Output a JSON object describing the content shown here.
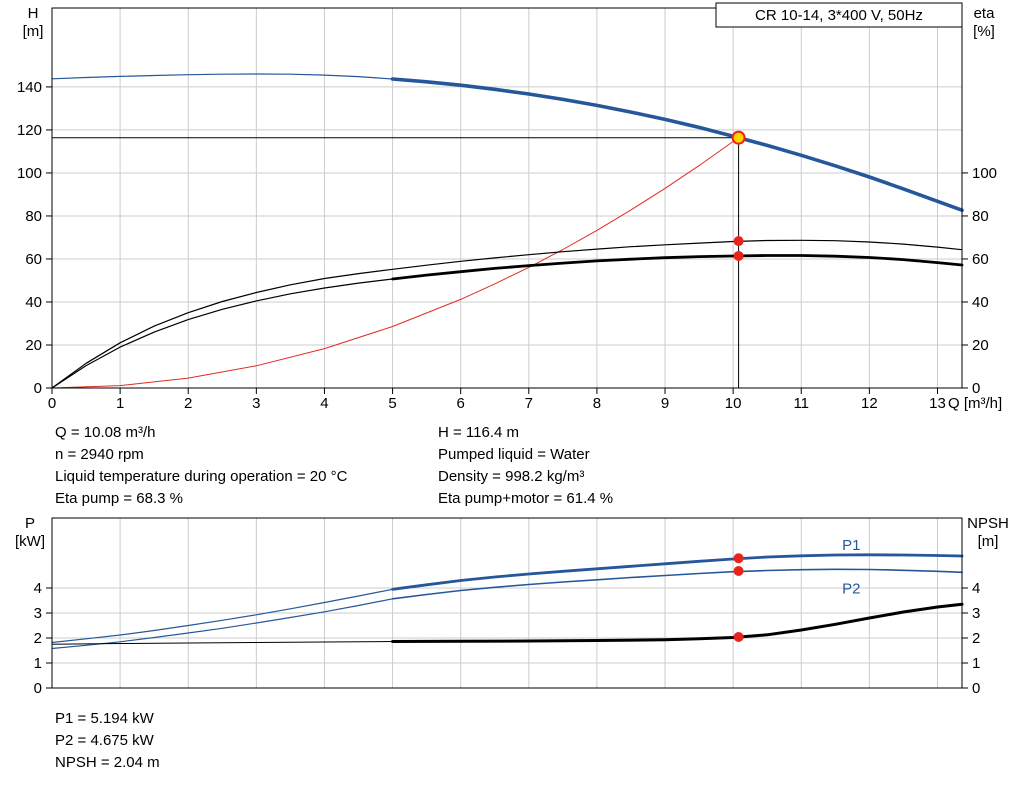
{
  "window": {
    "title_box": "CR 10-14, 3*400 V, 50Hz"
  },
  "top_info": {
    "left": [
      "Q = 10.08 m³/h",
      "n = 2940 rpm",
      "Liquid temperature during operation = 20 °C",
      "Eta pump = 68.3 %"
    ],
    "right": [
      "H = 116.4 m",
      "Pumped liquid = Water",
      "Density = 998.2 kg/m³",
      "Eta pump+motor = 61.4 %"
    ]
  },
  "bottom_info": [
    "P1 = 5.194 kW",
    "P2 = 4.675 kW",
    "NPSH = 2.04 m"
  ],
  "colors": {
    "curve_blue": "#27579b",
    "curve_black": "#000000",
    "curve_red": "#e02b20",
    "marker_red": "#e8231a",
    "marker_yellow": "#ffd500",
    "grid": "#cccccc"
  },
  "chart_data": [
    {
      "type": "line",
      "title": "CR 10-14, 3*400 V, 50Hz",
      "x_axis": {
        "label": "Q [m³/h]",
        "range": [
          0,
          13.36
        ],
        "ticks": [
          0,
          1,
          2,
          3,
          4,
          5,
          6,
          7,
          8,
          9,
          10,
          11,
          12,
          13
        ]
      },
      "left_axis": {
        "label": "H",
        "unit": "[m]",
        "range": [
          0,
          176.7
        ],
        "ticks": [
          0,
          20,
          40,
          60,
          80,
          100,
          120,
          140
        ]
      },
      "right_axis": {
        "label": "eta",
        "unit": "[%]",
        "range": [
          0,
          176.7
        ],
        "ticks": [
          0,
          20,
          40,
          60,
          80,
          100
        ]
      },
      "operating_point": {
        "q": 10.08,
        "h": 116.4,
        "eta_pump": 68.3,
        "eta_pump_motor": 61.4
      },
      "series": [
        {
          "name": "system-curve",
          "color": "#e02b20",
          "width": 1,
          "points": [
            [
              0,
              0
            ],
            [
              1,
              1.1
            ],
            [
              2,
              4.6
            ],
            [
              3,
              10.3
            ],
            [
              4,
              18.3
            ],
            [
              5,
              28.6
            ],
            [
              6,
              41.2
            ],
            [
              6.5,
              48.4
            ],
            [
              7,
              56.1
            ],
            [
              7.5,
              64.4
            ],
            [
              8,
              73.3
            ],
            [
              8.5,
              82.8
            ],
            [
              9,
              92.8
            ],
            [
              9.5,
              103.4
            ],
            [
              10,
              114.6
            ],
            [
              10.08,
              116.4
            ]
          ]
        },
        {
          "name": "duty-line-horizontal",
          "color": "#000000",
          "width": 1,
          "points": [
            [
              0,
              116.4
            ],
            [
              10.08,
              116.4
            ]
          ]
        },
        {
          "name": "duty-line-vertical",
          "color": "#000000",
          "width": 1,
          "points": [
            [
              10.08,
              0
            ],
            [
              10.08,
              116.4
            ]
          ]
        },
        {
          "name": "eta-pump",
          "color": "#000000",
          "width": 1.2,
          "points": [
            [
              0,
              0
            ],
            [
              0.5,
              11.5
            ],
            [
              1,
              21
            ],
            [
              1.5,
              28.8
            ],
            [
              2,
              35
            ],
            [
              2.5,
              40.2
            ],
            [
              3,
              44.4
            ],
            [
              3.5,
              48
            ],
            [
              4,
              50.9
            ],
            [
              4.5,
              53.2
            ],
            [
              5,
              55.2
            ],
            [
              5.5,
              57.1
            ],
            [
              6,
              58.9
            ],
            [
              6.5,
              60.5
            ],
            [
              7,
              62
            ],
            [
              7.5,
              63.4
            ],
            [
              8,
              64.6
            ],
            [
              8.5,
              65.7
            ],
            [
              9,
              66.6
            ],
            [
              9.5,
              67.4
            ],
            [
              10,
              68.1
            ],
            [
              10.5,
              68.6
            ],
            [
              11,
              68.7
            ],
            [
              11.5,
              68.5
            ],
            [
              12,
              67.9
            ],
            [
              12.5,
              66.9
            ],
            [
              13,
              65.5
            ],
            [
              13.36,
              64.3
            ]
          ]
        },
        {
          "name": "eta-pump-motor-thin",
          "color": "#000000",
          "width": 1.2,
          "points": [
            [
              0,
              0
            ],
            [
              0.5,
              10.4
            ],
            [
              1,
              19
            ],
            [
              1.5,
              26
            ],
            [
              2,
              31.8
            ],
            [
              2.5,
              36.6
            ],
            [
              3,
              40.5
            ],
            [
              3.5,
              43.8
            ],
            [
              4,
              46.5
            ],
            [
              4.5,
              48.8
            ],
            [
              5,
              50.7
            ]
          ]
        },
        {
          "name": "eta-pump-motor",
          "color": "#000000",
          "width": 2.8,
          "points": [
            [
              5,
              50.7
            ],
            [
              5.5,
              52.5
            ],
            [
              6,
              54.1
            ],
            [
              6.5,
              55.6
            ],
            [
              7,
              56.9
            ],
            [
              7.5,
              58.1
            ],
            [
              8,
              59.1
            ],
            [
              8.5,
              59.9
            ],
            [
              9,
              60.6
            ],
            [
              9.5,
              61.1
            ],
            [
              10,
              61.4
            ],
            [
              10.5,
              61.6
            ],
            [
              11,
              61.6
            ],
            [
              11.5,
              61.3
            ],
            [
              12,
              60.7
            ],
            [
              12.5,
              59.7
            ],
            [
              13,
              58.3
            ],
            [
              13.36,
              57.2
            ]
          ]
        },
        {
          "name": "head-curve-thin",
          "color": "#27579b",
          "width": 1.2,
          "points": [
            [
              0,
              143.8
            ],
            [
              0.5,
              144.4
            ],
            [
              1,
              144.9
            ],
            [
              1.5,
              145.3
            ],
            [
              2,
              145.7
            ],
            [
              2.5,
              145.9
            ],
            [
              3,
              146
            ],
            [
              3.5,
              145.9
            ],
            [
              4,
              145.5
            ],
            [
              4.5,
              144.8
            ],
            [
              5,
              143.7
            ]
          ]
        },
        {
          "name": "head-curve",
          "color": "#27579b",
          "width": 3.6,
          "points": [
            [
              5,
              143.7
            ],
            [
              5.5,
              142.4
            ],
            [
              6,
              140.8
            ],
            [
              6.5,
              138.9
            ],
            [
              7,
              136.7
            ],
            [
              7.5,
              134.2
            ],
            [
              8,
              131.4
            ],
            [
              8.5,
              128.3
            ],
            [
              9,
              124.9
            ],
            [
              9.5,
              121.2
            ],
            [
              10,
              117.1
            ],
            [
              10.5,
              112.8
            ],
            [
              11,
              108.2
            ],
            [
              11.5,
              103.3
            ],
            [
              12,
              98.1
            ],
            [
              12.5,
              92.6
            ],
            [
              13,
              86.8
            ],
            [
              13.36,
              82.7
            ]
          ]
        }
      ],
      "markers": [
        {
          "name": "eta-pump-point",
          "x": 10.08,
          "y": 68.3,
          "r": 5,
          "fill": "#e8231a"
        },
        {
          "name": "eta-pump-motor-point",
          "x": 10.08,
          "y": 61.4,
          "r": 5,
          "fill": "#e8231a"
        },
        {
          "name": "operating-point",
          "x": 10.08,
          "y": 116.4,
          "r": 6,
          "fill": "#ffd500",
          "stroke": "#e8231a",
          "stroke_width": 2
        }
      ],
      "labels": []
    },
    {
      "type": "line",
      "x_axis": {
        "label": "",
        "range": [
          0,
          13.36
        ],
        "ticks": [
          0,
          1,
          2,
          3,
          4,
          5,
          6,
          7,
          8,
          9,
          10,
          11,
          12,
          13
        ]
      },
      "left_axis": {
        "label": "P",
        "unit": "[kW]",
        "range": [
          0,
          6.8
        ],
        "ticks": [
          0,
          1,
          2,
          3,
          4
        ]
      },
      "right_axis": {
        "label": "NPSH",
        "unit": "[m]",
        "range": [
          0,
          6.8
        ],
        "ticks": [
          0,
          1,
          2,
          3,
          4
        ]
      },
      "operating_point": {
        "q": 10.08,
        "p1_kw": 5.194,
        "p2_kw": 4.675,
        "npsh_m": 2.04
      },
      "series": [
        {
          "name": "p1-thin",
          "color": "#27579b",
          "width": 1.2,
          "points": [
            [
              0,
              1.82
            ],
            [
              0.5,
              1.97
            ],
            [
              1,
              2.12
            ],
            [
              1.5,
              2.3
            ],
            [
              2,
              2.5
            ],
            [
              2.5,
              2.71
            ],
            [
              3,
              2.93
            ],
            [
              3.5,
              3.17
            ],
            [
              4,
              3.42
            ],
            [
              4.5,
              3.68
            ],
            [
              5,
              3.95
            ]
          ]
        },
        {
          "name": "p1",
          "color": "#27579b",
          "width": 2.8,
          "points": [
            [
              5,
              3.95
            ],
            [
              5.5,
              4.13
            ],
            [
              6,
              4.3
            ],
            [
              6.5,
              4.44
            ],
            [
              7,
              4.56
            ],
            [
              7.5,
              4.67
            ],
            [
              8,
              4.77
            ],
            [
              8.5,
              4.87
            ],
            [
              9,
              4.97
            ],
            [
              9.5,
              5.07
            ],
            [
              10,
              5.16
            ],
            [
              10.5,
              5.24
            ],
            [
              11,
              5.29
            ],
            [
              11.5,
              5.32
            ],
            [
              12,
              5.33
            ],
            [
              12.5,
              5.32
            ],
            [
              13,
              5.3
            ],
            [
              13.36,
              5.28
            ]
          ]
        },
        {
          "name": "p2-thin",
          "color": "#27579b",
          "width": 1.2,
          "points": [
            [
              0,
              1.58
            ],
            [
              0.5,
              1.71
            ],
            [
              1,
              1.85
            ],
            [
              1.5,
              2.02
            ],
            [
              2,
              2.2
            ],
            [
              2.5,
              2.39
            ],
            [
              3,
              2.6
            ],
            [
              3.5,
              2.82
            ],
            [
              4,
              3.05
            ],
            [
              4.5,
              3.3
            ],
            [
              5,
              3.57
            ]
          ]
        },
        {
          "name": "p2",
          "color": "#27579b",
          "width": 1.6,
          "points": [
            [
              5,
              3.57
            ],
            [
              5.5,
              3.74
            ],
            [
              6,
              3.9
            ],
            [
              6.5,
              4.03
            ],
            [
              7,
              4.14
            ],
            [
              7.5,
              4.24
            ],
            [
              8,
              4.33
            ],
            [
              8.5,
              4.42
            ],
            [
              9,
              4.5
            ],
            [
              9.5,
              4.58
            ],
            [
              10,
              4.65
            ],
            [
              10.5,
              4.7
            ],
            [
              11,
              4.73
            ],
            [
              11.5,
              4.75
            ],
            [
              12,
              4.74
            ],
            [
              12.5,
              4.71
            ],
            [
              13,
              4.67
            ],
            [
              13.36,
              4.63
            ]
          ]
        },
        {
          "name": "npsh-thin",
          "color": "#000000",
          "width": 1,
          "points": [
            [
              0,
              1.75
            ],
            [
              1,
              1.78
            ],
            [
              2,
              1.8
            ],
            [
              3,
              1.82
            ],
            [
              4,
              1.84
            ],
            [
              5,
              1.86
            ]
          ]
        },
        {
          "name": "npsh",
          "color": "#000000",
          "width": 3,
          "points": [
            [
              5,
              1.86
            ],
            [
              6,
              1.87
            ],
            [
              7,
              1.88
            ],
            [
              8,
              1.9
            ],
            [
              9,
              1.93
            ],
            [
              9.5,
              1.97
            ],
            [
              10,
              2.02
            ],
            [
              10.5,
              2.13
            ],
            [
              11,
              2.32
            ],
            [
              11.5,
              2.55
            ],
            [
              12,
              2.8
            ],
            [
              12.5,
              3.04
            ],
            [
              13,
              3.24
            ],
            [
              13.36,
              3.35
            ]
          ]
        }
      ],
      "markers": [
        {
          "name": "p1-point",
          "x": 10.08,
          "y": 5.19,
          "r": 5,
          "fill": "#e8231a"
        },
        {
          "name": "p2-point",
          "x": 10.08,
          "y": 4.68,
          "r": 5,
          "fill": "#e8231a"
        },
        {
          "name": "npsh-point",
          "x": 10.08,
          "y": 2.04,
          "r": 5,
          "fill": "#e8231a"
        }
      ],
      "labels": [
        {
          "text": "P1",
          "x": 11.6,
          "y": 5.52,
          "color": "#27579b"
        },
        {
          "text": "P2",
          "x": 11.6,
          "y": 3.78,
          "color": "#27579b"
        }
      ]
    }
  ]
}
